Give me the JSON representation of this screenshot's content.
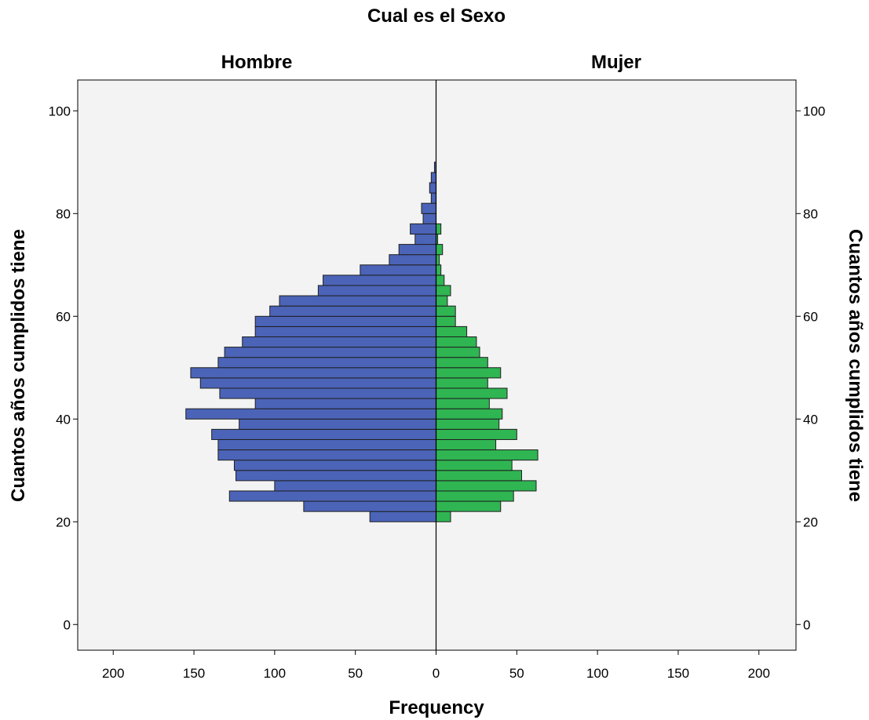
{
  "chart_data": {
    "type": "bar",
    "orientation": "horizontal",
    "title": "Cual es el Sexo",
    "xlabel": "Frequency",
    "ylabel": "Cuantos años cumplidos tiene",
    "xlim": [
      0,
      222
    ],
    "ylim": [
      -5,
      106
    ],
    "x_ticks": [
      0,
      50,
      100,
      150,
      200
    ],
    "y_ticks": [
      0,
      20,
      40,
      60,
      80,
      100
    ],
    "bin_width": 2,
    "colors": {
      "Hombre": "#4b64b8",
      "Mujer": "#2fb552",
      "plot_background": "#f3f3f3",
      "bar_outline": "#1f1f1f"
    },
    "series": [
      {
        "name": "Hombre",
        "side": "left",
        "bins": [
          {
            "y": 20,
            "value": 41
          },
          {
            "y": 22,
            "value": 82
          },
          {
            "y": 24,
            "value": 128
          },
          {
            "y": 26,
            "value": 100
          },
          {
            "y": 28,
            "value": 124
          },
          {
            "y": 30,
            "value": 125
          },
          {
            "y": 32,
            "value": 135
          },
          {
            "y": 34,
            "value": 135
          },
          {
            "y": 36,
            "value": 139
          },
          {
            "y": 38,
            "value": 122
          },
          {
            "y": 40,
            "value": 155
          },
          {
            "y": 42,
            "value": 112
          },
          {
            "y": 44,
            "value": 134
          },
          {
            "y": 46,
            "value": 146
          },
          {
            "y": 48,
            "value": 152
          },
          {
            "y": 50,
            "value": 135
          },
          {
            "y": 52,
            "value": 131
          },
          {
            "y": 54,
            "value": 120
          },
          {
            "y": 56,
            "value": 112
          },
          {
            "y": 58,
            "value": 112
          },
          {
            "y": 60,
            "value": 103
          },
          {
            "y": 62,
            "value": 97
          },
          {
            "y": 64,
            "value": 73
          },
          {
            "y": 66,
            "value": 70
          },
          {
            "y": 68,
            "value": 47
          },
          {
            "y": 70,
            "value": 29
          },
          {
            "y": 72,
            "value": 23
          },
          {
            "y": 74,
            "value": 13
          },
          {
            "y": 76,
            "value": 16
          },
          {
            "y": 78,
            "value": 8
          },
          {
            "y": 80,
            "value": 9
          },
          {
            "y": 82,
            "value": 3
          },
          {
            "y": 84,
            "value": 4
          },
          {
            "y": 86,
            "value": 3
          },
          {
            "y": 88,
            "value": 1
          }
        ]
      },
      {
        "name": "Mujer",
        "side": "right",
        "bins": [
          {
            "y": 20,
            "value": 9
          },
          {
            "y": 22,
            "value": 40
          },
          {
            "y": 24,
            "value": 48
          },
          {
            "y": 26,
            "value": 62
          },
          {
            "y": 28,
            "value": 53
          },
          {
            "y": 30,
            "value": 47
          },
          {
            "y": 32,
            "value": 63
          },
          {
            "y": 34,
            "value": 37
          },
          {
            "y": 36,
            "value": 50
          },
          {
            "y": 38,
            "value": 39
          },
          {
            "y": 40,
            "value": 41
          },
          {
            "y": 42,
            "value": 33
          },
          {
            "y": 44,
            "value": 44
          },
          {
            "y": 46,
            "value": 32
          },
          {
            "y": 48,
            "value": 40
          },
          {
            "y": 50,
            "value": 32
          },
          {
            "y": 52,
            "value": 27
          },
          {
            "y": 54,
            "value": 25
          },
          {
            "y": 56,
            "value": 19
          },
          {
            "y": 58,
            "value": 12
          },
          {
            "y": 60,
            "value": 12
          },
          {
            "y": 62,
            "value": 7
          },
          {
            "y": 64,
            "value": 9
          },
          {
            "y": 66,
            "value": 5
          },
          {
            "y": 68,
            "value": 3
          },
          {
            "y": 70,
            "value": 2
          },
          {
            "y": 72,
            "value": 4
          },
          {
            "y": 74,
            "value": 1
          },
          {
            "y": 76,
            "value": 3
          }
        ]
      }
    ]
  }
}
